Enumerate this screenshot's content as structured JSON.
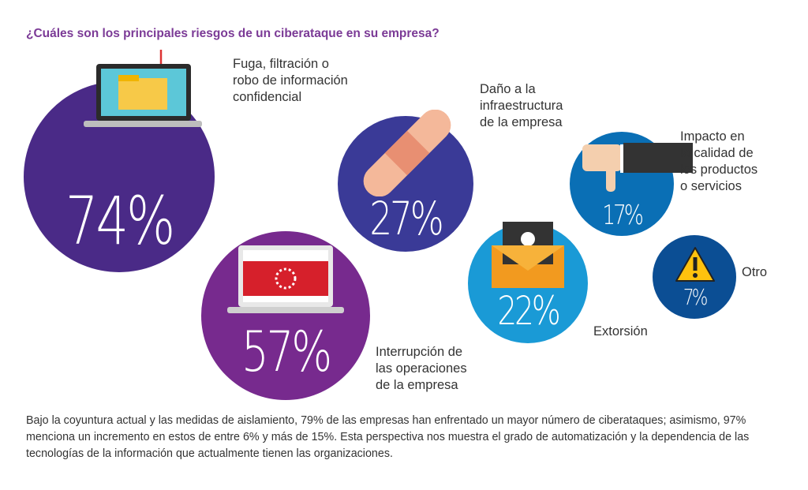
{
  "title": "¿Cuáles son los principales riesgos de un ciberataque en su empresa?",
  "items": [
    {
      "label_lines": [
        "Fuga, filtración o",
        "robo de información",
        "confidencial"
      ],
      "value": "74%",
      "color": "#4a2a87",
      "icon": "laptop-folder-hook-icon"
    },
    {
      "label_lines": [
        "Interrupción de",
        "las operaciones",
        "de la empresa"
      ],
      "value": "57%",
      "color": "#772a8e",
      "icon": "laptop-loading-icon"
    },
    {
      "label_lines": [
        "Daño a la",
        "infraestructura",
        "de la empresa"
      ],
      "value": "27%",
      "color": "#3a3a97",
      "icon": "bandage-icon"
    },
    {
      "label_lines": [
        "Extorsión"
      ],
      "value": "22%",
      "color": "#1a9ad6",
      "icon": "skull-envelope-icon"
    },
    {
      "label_lines": [
        "Impacto en",
        "la calidad de",
        "los productos",
        "o servicios"
      ],
      "value": "17%",
      "color": "#0a6fb5",
      "icon": "thumbs-down-icon"
    },
    {
      "label_lines": [
        "Otro"
      ],
      "value": "7%",
      "color": "#0b4e94",
      "icon": "warning-icon"
    }
  ],
  "note": "Bajo la coyuntura actual y las medidas de aislamiento, 79% de las empresas han enfrentado un mayor número de ciberataques; asimismo, 97% menciona un incremento en estos de entre 6% y más de 15%. Esta perspectiva nos muestra el grado de automatización y la dependencia de las tecnologías de la información que actualmente tienen las organizaciones."
}
